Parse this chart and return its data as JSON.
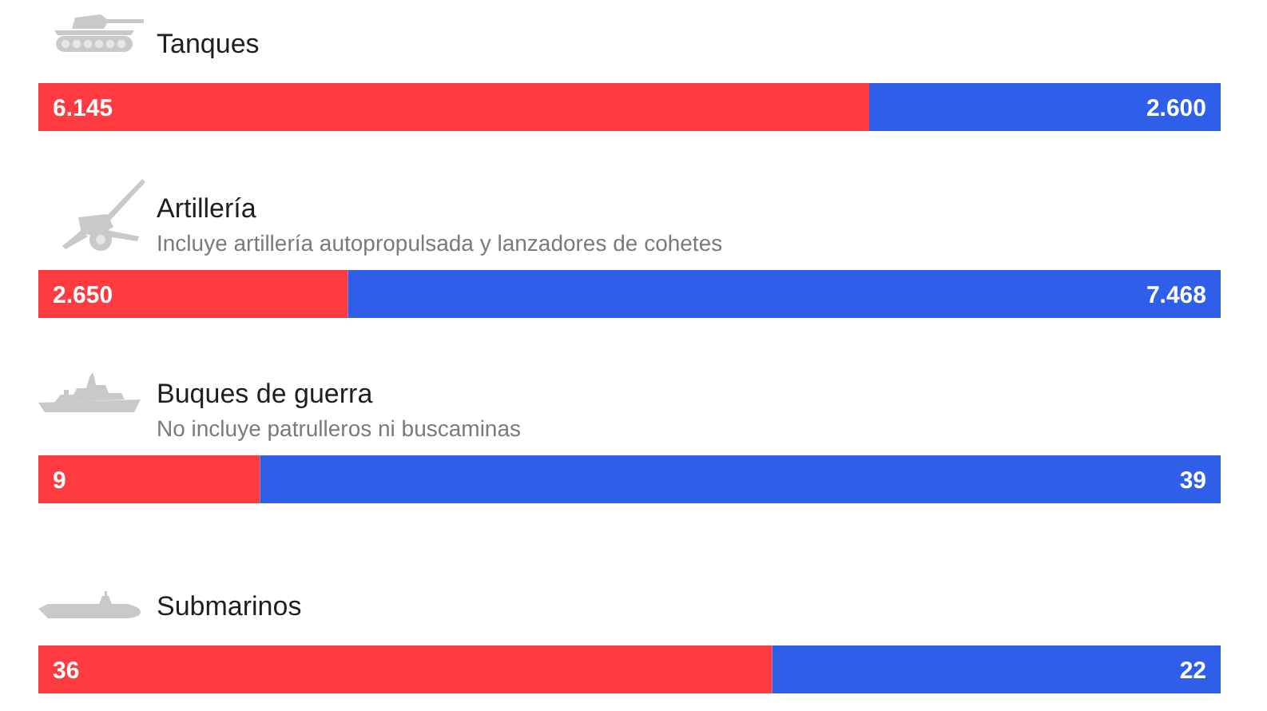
{
  "chart_data": [
    {
      "type": "bar",
      "orientation": "horizontal",
      "stacked": true,
      "title": "Tanques",
      "categories": [
        null
      ],
      "tick_labels": false,
      "series": [
        {
          "color": "#fe3b40",
          "values": [
            6145
          ],
          "value_labels": [
            "6.145"
          ]
        },
        {
          "color": "#2f5fe8",
          "values": [
            2600
          ],
          "value_labels": [
            "2.600"
          ]
        }
      ]
    },
    {
      "type": "bar",
      "orientation": "horizontal",
      "stacked": true,
      "title": "Artillería",
      "subtitle": "Incluye artillería autopropulsada y lanzadores de cohetes",
      "categories": [
        null
      ],
      "tick_labels": false,
      "series": [
        {
          "color": "#fe3b40",
          "values": [
            2650
          ],
          "value_labels": [
            "2.650"
          ]
        },
        {
          "color": "#2f5fe8",
          "values": [
            7468
          ],
          "value_labels": [
            "7.468"
          ]
        }
      ]
    },
    {
      "type": "bar",
      "orientation": "horizontal",
      "stacked": true,
      "title": "Buques de guerra",
      "subtitle": "No incluye patrulleros ni buscaminas",
      "categories": [
        null
      ],
      "tick_labels": false,
      "series": [
        {
          "color": "#fe3b40",
          "values": [
            9
          ],
          "value_labels": [
            "9"
          ]
        },
        {
          "color": "#2f5fe8",
          "values": [
            39
          ],
          "value_labels": [
            "39"
          ]
        }
      ]
    },
    {
      "type": "bar",
      "orientation": "horizontal",
      "stacked": true,
      "title": "Submarinos",
      "categories": [
        null
      ],
      "tick_labels": false,
      "series": [
        {
          "color": "#fe3b40",
          "values": [
            36
          ],
          "value_labels": [
            "36"
          ]
        },
        {
          "color": "#2f5fe8",
          "values": [
            22
          ],
          "value_labels": [
            "22"
          ]
        }
      ]
    }
  ]
}
